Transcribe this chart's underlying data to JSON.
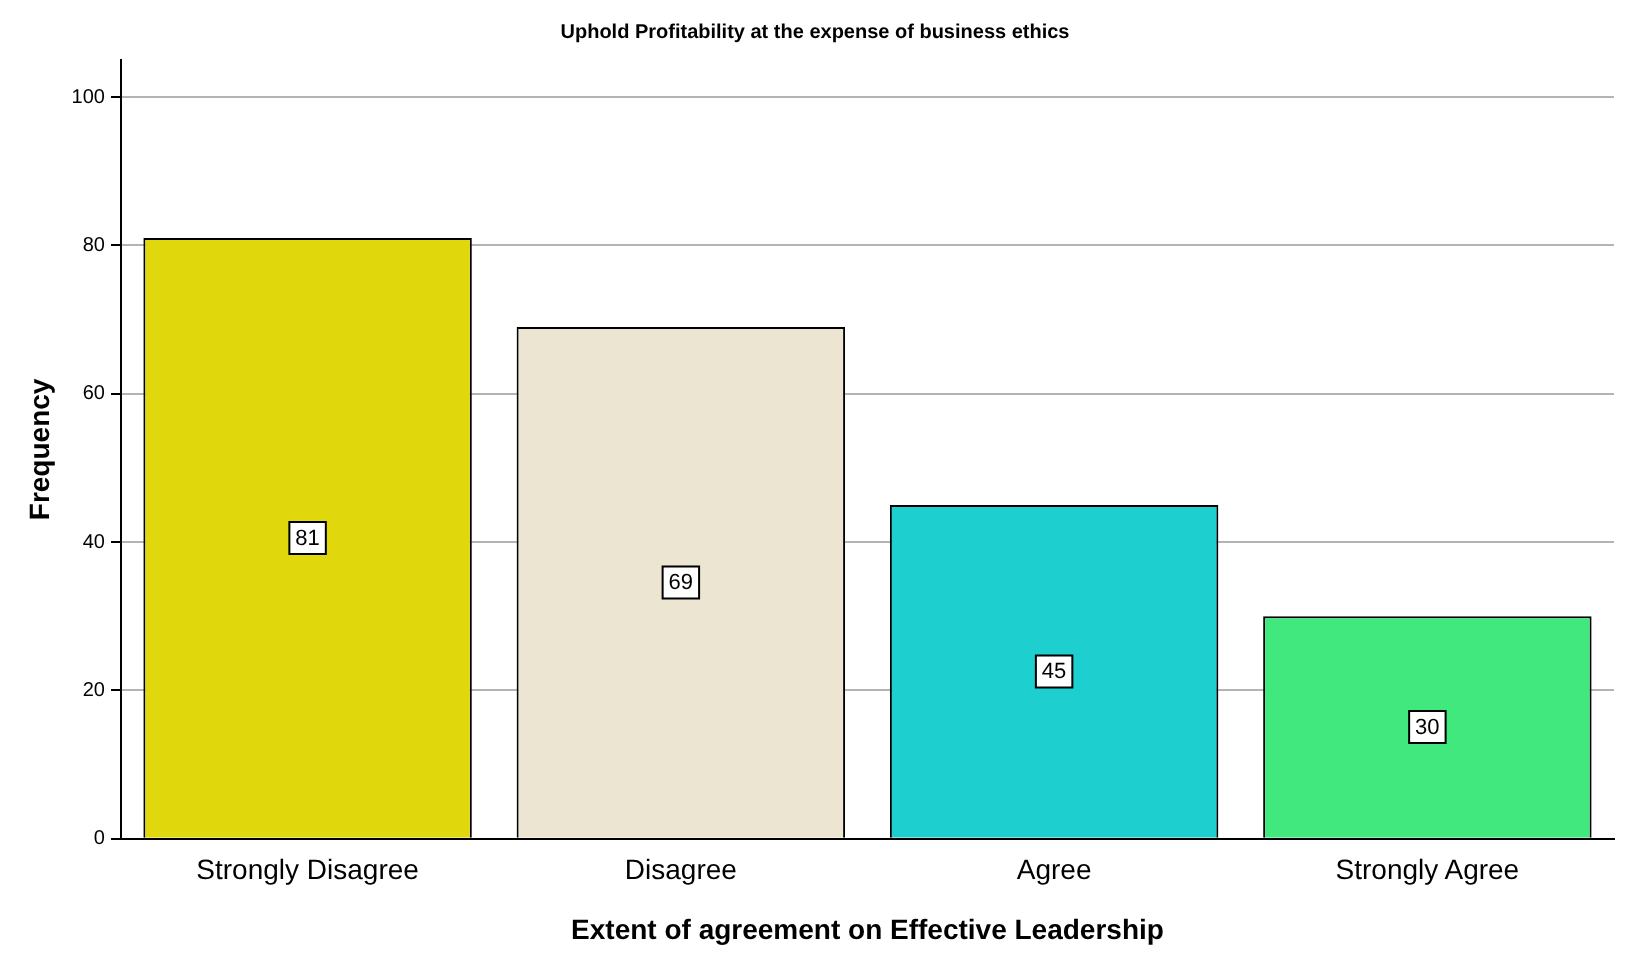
{
  "chart_data": {
    "type": "bar",
    "title": "Uphold Profitability at the expense of business ethics",
    "xlabel": "Extent of agreement on Effective Leadership",
    "ylabel": "Frequency",
    "categories": [
      "Strongly Disagree",
      "Disagree",
      "Agree",
      "Strongly Agree"
    ],
    "values": [
      81,
      69,
      45,
      30
    ],
    "colors": [
      "#e1d70d",
      "#ebe5d1",
      "#1ecfcf",
      "#40e87e"
    ],
    "ylim": [
      0,
      105
    ],
    "yticks": [
      0,
      20,
      40,
      60,
      80,
      100
    ],
    "grid": "y",
    "data_labels": true,
    "legend": false
  }
}
